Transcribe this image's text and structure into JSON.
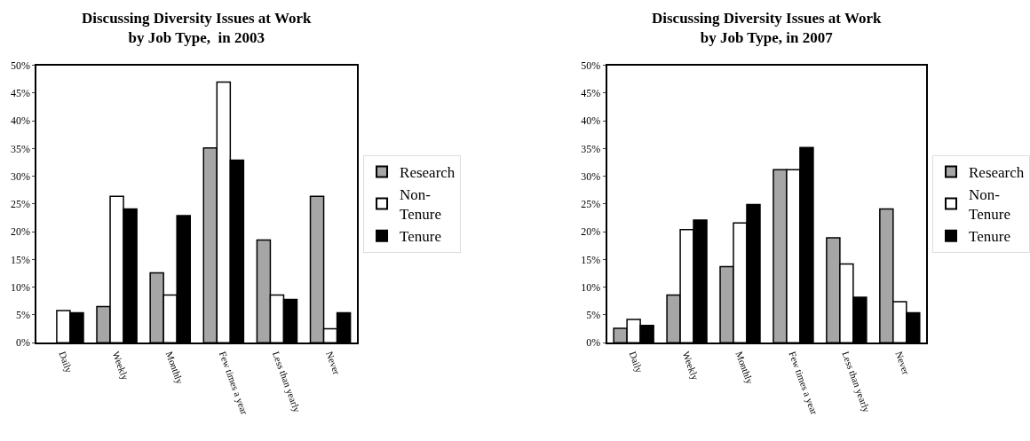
{
  "chart_data": [
    {
      "type": "bar",
      "title": "Discussing Diversity Issues at Work\nby Job Type,  in 2003",
      "categories": [
        "Daily",
        "Weekly",
        "Monthly",
        "Few times a year",
        "Less than yearly",
        "Never"
      ],
      "series": [
        {
          "name": "Research",
          "color": "#a6a6a6",
          "values": [
            null,
            6.5,
            12.6,
            35.1,
            18.5,
            26.4
          ]
        },
        {
          "name": "Non-\nTenure",
          "color": "#ffffff",
          "values": [
            5.8,
            26.4,
            8.6,
            47.0,
            8.6,
            2.5
          ]
        },
        {
          "name": "Tenure",
          "color": "#000000",
          "values": [
            5.4,
            24.1,
            22.9,
            32.9,
            7.8,
            5.4
          ]
        }
      ],
      "ylim": [
        0,
        50
      ],
      "yticks": [
        {
          "value": 0,
          "label": "0%"
        },
        {
          "value": 5,
          "label": "5%"
        },
        {
          "value": 10,
          "label": "10%"
        },
        {
          "value": 15,
          "label": "15%"
        },
        {
          "value": 20,
          "label": "20%"
        },
        {
          "value": 25,
          "label": "25%"
        },
        {
          "value": 30,
          "label": "30%"
        },
        {
          "value": 35,
          "label": "35%"
        },
        {
          "value": 40,
          "label": "40%"
        },
        {
          "value": 45,
          "label": "45%"
        },
        {
          "value": 50,
          "label": "50%"
        }
      ],
      "legend": "right"
    },
    {
      "type": "bar",
      "title": "Discussing Diversity Issues at Work\nby Job Type, in 2007",
      "categories": [
        "Daily",
        "Weekly",
        "Monthly",
        "Few times a year",
        "Less than yearly",
        "Never"
      ],
      "series": [
        {
          "name": "Research",
          "color": "#a6a6a6",
          "values": [
            2.6,
            8.6,
            13.7,
            31.2,
            18.9,
            24.1
          ]
        },
        {
          "name": "Non-\nTenure",
          "color": "#ffffff",
          "values": [
            4.2,
            20.4,
            21.6,
            31.2,
            14.2,
            7.4
          ]
        },
        {
          "name": "Tenure",
          "color": "#000000",
          "values": [
            3.1,
            22.1,
            24.9,
            35.2,
            8.2,
            5.4
          ]
        }
      ],
      "ylim": [
        0,
        50
      ],
      "yticks": [
        {
          "value": 0,
          "label": "0%"
        },
        {
          "value": 5,
          "label": "5%"
        },
        {
          "value": 10,
          "label": "10%"
        },
        {
          "value": 15,
          "label": "15%"
        },
        {
          "value": 20,
          "label": "20%"
        },
        {
          "value": 25,
          "label": "25%"
        },
        {
          "value": 30,
          "label": "30%"
        },
        {
          "value": 35,
          "label": "35%"
        },
        {
          "value": 40,
          "label": "40%"
        },
        {
          "value": 45,
          "label": "45%"
        },
        {
          "value": 50,
          "label": "50%"
        }
      ],
      "legend": "right"
    }
  ]
}
